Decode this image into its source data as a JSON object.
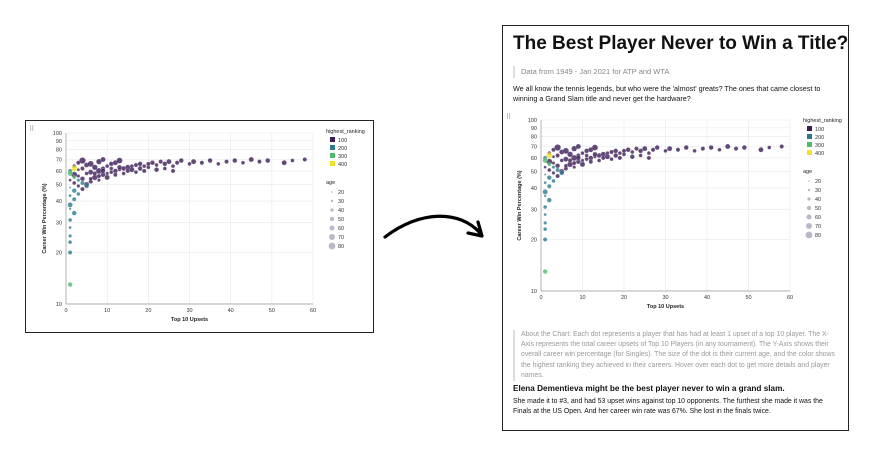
{
  "chart_data": {
    "type": "scatter",
    "xlabel": "Top 10 Upsets",
    "ylabel": "Career Win Percentage (%)",
    "x_ticks": [
      0,
      10,
      20,
      30,
      40,
      50,
      60
    ],
    "y_ticks": [
      10,
      20,
      30,
      40,
      50,
      60,
      70,
      80,
      90,
      100
    ],
    "xlim": [
      0,
      60
    ],
    "ylim": [
      10,
      100
    ],
    "legend_color_title": "highest_ranking",
    "legend_color": [
      {
        "label": "100",
        "color": "#3b1c56"
      },
      {
        "label": "200",
        "color": "#2a7b8e"
      },
      {
        "label": "300",
        "color": "#4dbb6e"
      },
      {
        "label": "400",
        "color": "#f0e22c"
      }
    ],
    "legend_size_title": "age",
    "legend_size": [
      "20",
      "30",
      "40",
      "50",
      "60",
      "70",
      "80"
    ],
    "series": [
      {
        "name": "players",
        "points": [
          [
            1,
            13,
            55,
            2
          ],
          [
            1,
            20,
            50,
            1
          ],
          [
            1,
            23,
            45,
            1
          ],
          [
            1,
            25,
            40,
            1
          ],
          [
            1,
            28,
            35,
            1
          ],
          [
            1,
            31,
            45,
            1
          ],
          [
            2,
            34,
            55,
            1
          ],
          [
            1,
            36,
            30,
            1
          ],
          [
            1,
            38,
            60,
            1
          ],
          [
            2,
            41,
            50,
            1
          ],
          [
            1,
            43,
            35,
            1
          ],
          [
            3,
            44,
            45,
            1
          ],
          [
            2,
            46,
            55,
            1
          ],
          [
            4,
            47,
            50,
            0
          ],
          [
            1,
            48,
            25,
            1
          ],
          [
            3,
            49,
            40,
            0
          ],
          [
            5,
            50,
            60,
            0
          ],
          [
            2,
            51,
            45,
            0
          ],
          [
            6,
            52,
            50,
            0
          ],
          [
            1,
            53,
            35,
            0
          ],
          [
            4,
            54,
            55,
            0
          ],
          [
            7,
            55,
            65,
            0
          ],
          [
            3,
            56,
            40,
            0
          ],
          [
            8,
            56,
            50,
            0
          ],
          [
            2,
            57,
            70,
            0
          ],
          [
            5,
            58,
            45,
            0
          ],
          [
            9,
            57,
            55,
            0
          ],
          [
            10,
            58,
            40,
            0
          ],
          [
            6,
            59,
            60,
            0
          ],
          [
            1,
            60,
            50,
            1
          ],
          [
            3,
            61,
            35,
            0
          ],
          [
            8,
            60,
            70,
            0
          ],
          [
            11,
            59,
            45,
            0
          ],
          [
            4,
            62,
            50,
            0
          ],
          [
            12,
            60,
            55,
            0
          ],
          [
            7,
            63,
            65,
            0
          ],
          [
            2,
            64,
            45,
            0
          ],
          [
            9,
            62,
            50,
            0
          ],
          [
            5,
            65,
            60,
            0
          ],
          [
            13,
            61,
            40,
            0
          ],
          [
            14,
            62,
            55,
            0
          ],
          [
            6,
            66,
            70,
            0
          ],
          [
            10,
            64,
            45,
            0
          ],
          [
            3,
            67,
            50,
            0
          ],
          [
            15,
            63,
            60,
            0
          ],
          [
            11,
            66,
            55,
            0
          ],
          [
            16,
            64,
            45,
            0
          ],
          [
            8,
            68,
            65,
            0
          ],
          [
            17,
            65,
            50,
            0
          ],
          [
            4,
            69,
            75,
            0
          ],
          [
            18,
            66,
            55,
            0
          ],
          [
            12,
            67,
            60,
            0
          ],
          [
            19,
            64,
            45,
            0
          ],
          [
            20,
            66,
            50,
            0
          ],
          [
            9,
            70,
            60,
            0
          ],
          [
            21,
            67,
            55,
            0
          ],
          [
            22,
            65,
            45,
            0
          ],
          [
            13,
            69,
            70,
            0
          ],
          [
            23,
            68,
            50,
            0
          ],
          [
            2,
            55,
            45,
            2
          ],
          [
            3,
            53,
            40,
            1
          ],
          [
            1,
            58,
            60,
            2
          ],
          [
            4,
            51,
            50,
            1
          ],
          [
            24,
            66,
            55,
            0
          ],
          [
            25,
            68,
            60,
            0
          ],
          [
            26,
            64,
            45,
            0
          ],
          [
            27,
            67,
            50,
            0
          ],
          [
            28,
            69,
            55,
            0
          ],
          [
            30,
            66,
            45,
            0
          ],
          [
            31,
            68,
            60,
            0
          ],
          [
            33,
            67,
            50,
            0
          ],
          [
            35,
            69,
            55,
            0
          ],
          [
            37,
            66,
            45,
            0
          ],
          [
            39,
            68,
            50,
            0
          ],
          [
            41,
            69,
            55,
            0
          ],
          [
            43,
            67,
            45,
            0
          ],
          [
            45,
            70,
            60,
            0
          ],
          [
            47,
            68,
            50,
            0
          ],
          [
            49,
            69,
            55,
            0
          ],
          [
            53,
            67,
            60,
            0
          ],
          [
            55,
            69,
            45,
            0
          ],
          [
            58,
            70,
            50,
            0
          ],
          [
            2,
            62,
            70,
            3
          ],
          [
            5,
            49,
            55,
            1
          ],
          [
            6,
            54,
            45,
            0
          ],
          [
            7,
            58,
            50,
            0
          ],
          [
            8,
            53,
            40,
            0
          ],
          [
            9,
            60,
            55,
            0
          ],
          [
            10,
            55,
            60,
            0
          ],
          [
            11,
            62,
            45,
            0
          ],
          [
            12,
            57,
            50,
            0
          ],
          [
            13,
            63,
            55,
            0
          ],
          [
            14,
            58,
            45,
            0
          ],
          [
            15,
            60,
            50,
            0
          ],
          [
            16,
            61,
            60,
            0
          ],
          [
            17,
            59,
            45,
            0
          ],
          [
            18,
            62,
            55,
            0
          ],
          [
            19,
            60,
            50,
            0
          ],
          [
            20,
            63,
            45,
            0
          ],
          [
            22,
            61,
            55,
            0
          ],
          [
            24,
            62,
            45,
            0
          ],
          [
            26,
            60,
            50,
            0
          ]
        ]
      }
    ]
  },
  "right_panel": {
    "title": "The Best Player Never to Win a Title?",
    "subtitle": "Data from 1949 - Jan 2021 for ATP and WTA",
    "intro": "We all know the tennis legends, but who were the 'almost' greats? The ones that came closest to winning a Grand Slam title and never get the hardware?",
    "about": "About the Chart: Each dot represents a player that has had at least 1 upset of a top 10 player. The X-Axis represents the total career upsets of Top 10 Players (in any tournament). The Y-Axis shows their overall career win percentage (for Singles). The size of the dot is their current age, and the color shows the highest ranking they achieved in their careers. Hover over each dot to get more details and player names.",
    "highlight_heading": "Elena Dementieva might be the best player never to win a grand slam.",
    "highlight_body": "She made it to #3, and had 53 upset wins against top 10 opponents. The furthest she made it was the Finals at the US Open. And her career win rate was 67%. She lost in the finals twice."
  },
  "drag_handle_icon": "drag-grip-icon",
  "arrow_icon": "curved-arrow-icon"
}
